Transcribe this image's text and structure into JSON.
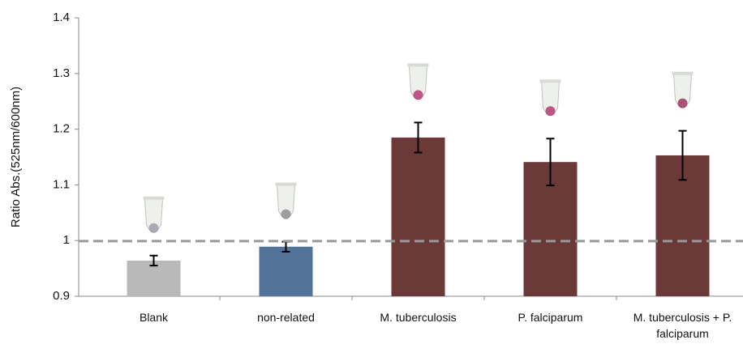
{
  "chart_data": {
    "type": "bar",
    "y_label": "Ratio Abs.(525nm/600nm)",
    "categories": [
      "Blank",
      "non-related",
      "M. tuberculosis",
      "P. falciparum",
      "M. tuberculosis + P. falciparum"
    ],
    "values": [
      0.964,
      0.989,
      1.185,
      1.141,
      1.153
    ],
    "errors": [
      0.009,
      0.009,
      0.027,
      0.042,
      0.044
    ],
    "colors": [
      "#b9b9b9",
      "#52739a",
      "#6b3937",
      "#6b3937",
      "#6b3937"
    ],
    "threshold": 0.999,
    "ylim": [
      0.9,
      1.4
    ],
    "yticks": [
      0.9,
      1,
      1.1,
      1.2,
      1.3,
      1.4
    ]
  }
}
